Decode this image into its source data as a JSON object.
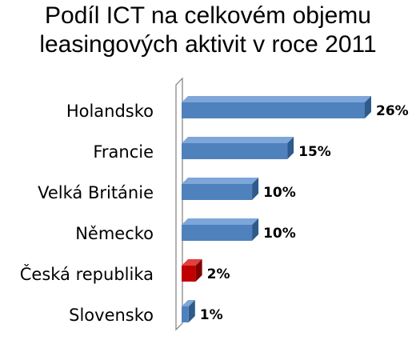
{
  "title_line1": "Podíl ICT na celkovém objemu",
  "title_line2": "leasingových aktivit v roce 2011",
  "chart_data": {
    "type": "bar",
    "orientation": "horizontal",
    "style": "3d",
    "title": "Podíl ICT na celkovém objemu leasingových aktivit v roce 2011",
    "categories": [
      "Holandsko",
      "Francie",
      "Velká Británie",
      "Německo",
      "Česká republika",
      "Slovensko"
    ],
    "values": [
      26,
      15,
      10,
      10,
      2,
      1
    ],
    "value_labels": [
      "26%",
      "15%",
      "10%",
      "10%",
      "2%",
      "1%"
    ],
    "unit": "%",
    "xlim": [
      0,
      26
    ],
    "grid": false,
    "legend": "none",
    "colors": {
      "default": "#4f81bd",
      "default_top": "#7ea6d8",
      "default_side": "#2f5a8c",
      "highlight": "#c00000",
      "highlight_top": "#e04040",
      "highlight_side": "#800000",
      "highlight_category": "Česká republika"
    }
  }
}
